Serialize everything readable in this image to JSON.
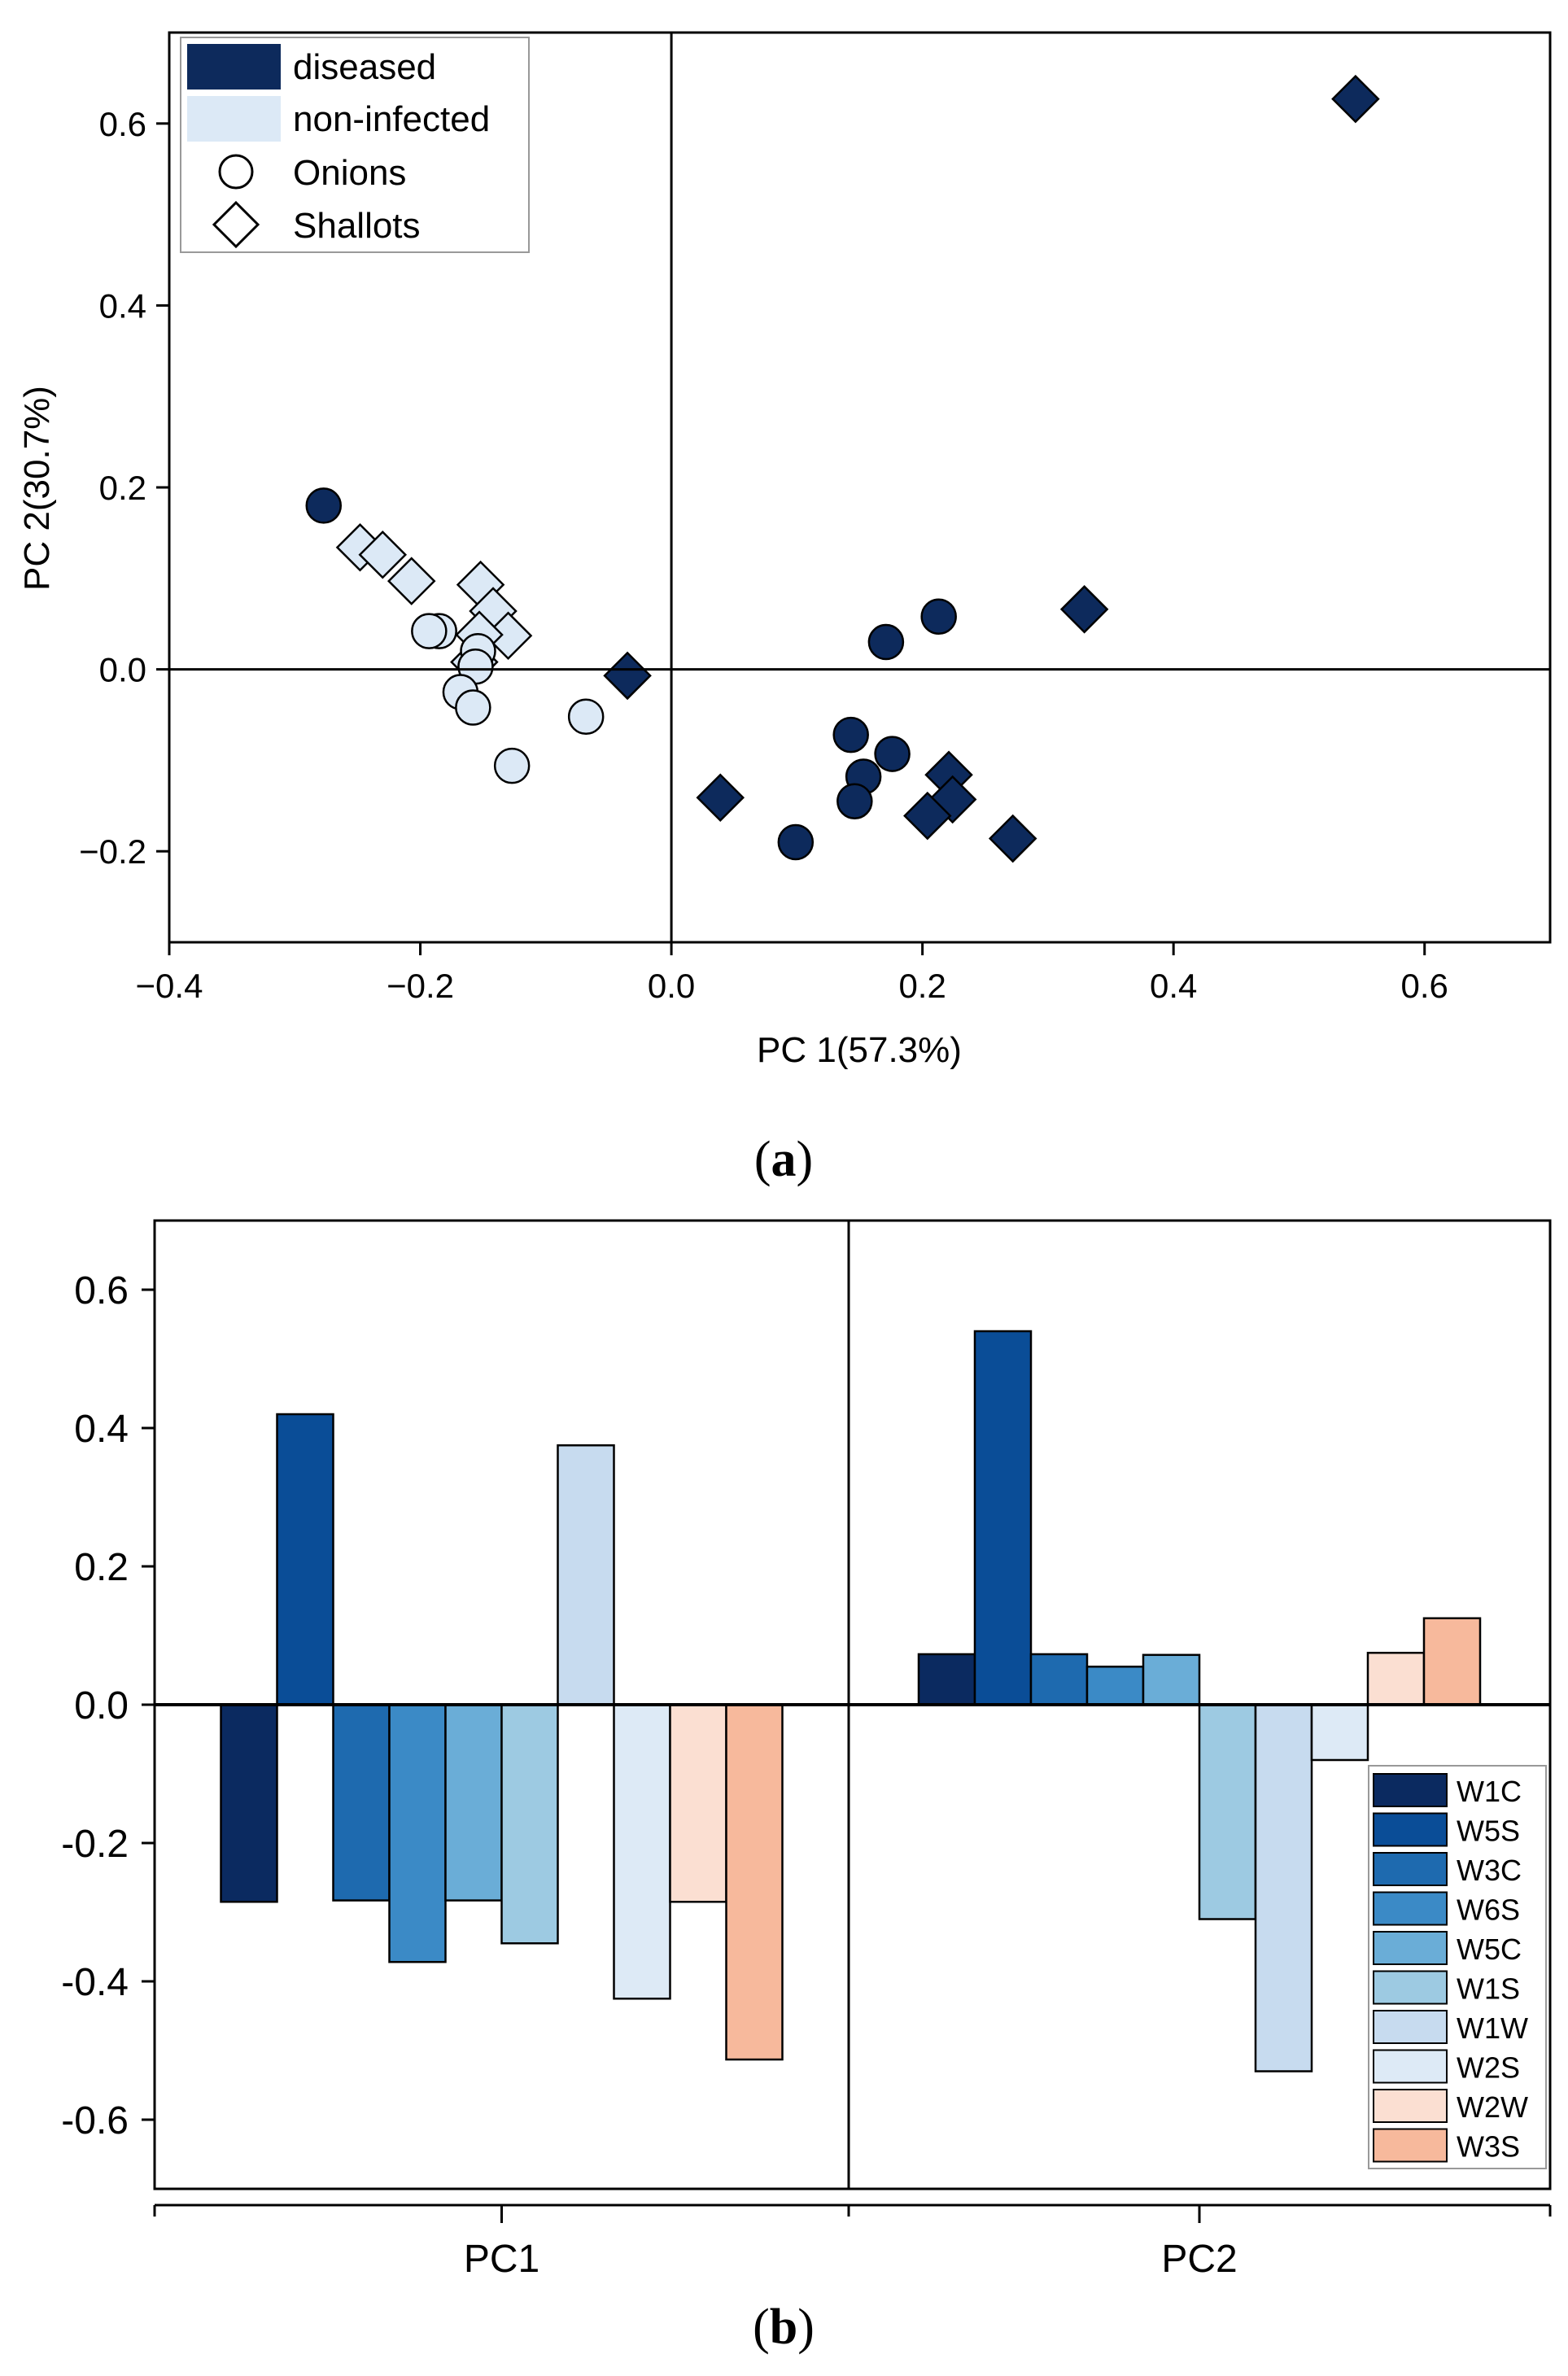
{
  "figure": {
    "panel_a_label": "(a)",
    "panel_b_label": "(b)",
    "panel_a_letter": "a",
    "panel_b_letter": "b",
    "paren_open": "(",
    "paren_close": ")"
  },
  "colors": {
    "diseased": "#0d2a5c",
    "non_infected": "#dce9f6",
    "W1C": "#0b2a60",
    "W5S": "#0a4d97",
    "W3C": "#1e6aaf",
    "W6S": "#3b8ac6",
    "W5C": "#6aadd7",
    "W1S": "#9dcae2",
    "W1W": "#c7dbef",
    "W2S": "#ddeaf6",
    "W2W": "#fbdfd2",
    "W3S": "#f7b99c"
  },
  "chart_data": [
    {
      "type": "scatter",
      "title": "",
      "xlabel": "PC 1(57.3%)",
      "ylabel": "PC 2(30.7%)",
      "xlim": [
        -0.4,
        0.7
      ],
      "ylim": [
        -0.3,
        0.7
      ],
      "xticks": [
        -0.4,
        -0.2,
        0.0,
        0.2,
        0.4,
        0.6
      ],
      "xtick_labels": [
        "−0.4",
        "−0.2",
        "0.0",
        "0.2",
        "0.4",
        "0.6"
      ],
      "yticks": [
        -0.2,
        0.0,
        0.2,
        0.4,
        0.6
      ],
      "ytick_labels": [
        "−0.2",
        "0.0",
        "0.2",
        "0.4",
        "0.6"
      ],
      "legend": {
        "position": "top-left",
        "entries": [
          "diseased",
          "non-infected",
          "Onions",
          "Shallots"
        ]
      },
      "series": [
        {
          "name": "diseased Onions",
          "marker": "circle",
          "color": "diseased",
          "points": [
            [
              -0.277,
              0.18
            ],
            [
              0.171,
              0.03
            ],
            [
              0.213,
              0.058
            ],
            [
              0.143,
              -0.072
            ],
            [
              0.176,
              -0.093
            ],
            [
              0.153,
              -0.118
            ],
            [
              0.146,
              -0.145
            ],
            [
              0.099,
              -0.19
            ]
          ]
        },
        {
          "name": "diseased Shallots",
          "marker": "diamond",
          "color": "diseased",
          "points": [
            [
              0.545,
              0.627
            ],
            [
              0.329,
              0.066
            ],
            [
              -0.035,
              -0.007
            ],
            [
              0.039,
              -0.141
            ],
            [
              0.221,
              -0.116
            ],
            [
              0.224,
              -0.143
            ],
            [
              0.204,
              -0.161
            ],
            [
              0.272,
              -0.186
            ]
          ]
        },
        {
          "name": "non-infected Onions",
          "marker": "circle",
          "color": "non_infected",
          "points": [
            [
              -0.185,
              0.042
            ],
            [
              -0.193,
              0.042
            ],
            [
              -0.154,
              0.02
            ],
            [
              -0.156,
              0.003
            ],
            [
              -0.168,
              -0.025
            ],
            [
              -0.158,
              -0.042
            ],
            [
              -0.068,
              -0.052
            ],
            [
              -0.127,
              -0.106
            ]
          ]
        },
        {
          "name": "non-infected Shallots",
          "marker": "diamond",
          "color": "non_infected",
          "points": [
            [
              -0.248,
              0.134
            ],
            [
              -0.23,
              0.126
            ],
            [
              -0.207,
              0.097
            ],
            [
              -0.152,
              0.093
            ],
            [
              -0.142,
              0.064
            ],
            [
              -0.13,
              0.037
            ],
            [
              -0.153,
              0.038
            ],
            [
              -0.157,
              0.008
            ]
          ]
        }
      ]
    },
    {
      "type": "bar",
      "title": "",
      "xlabel": "",
      "ylabel": "",
      "categories": [
        "PC1",
        "PC2"
      ],
      "ylim": [
        -0.7,
        0.7
      ],
      "yticks": [
        -0.6,
        -0.4,
        -0.2,
        0.0,
        0.2,
        0.4,
        0.6
      ],
      "ytick_labels": [
        "-0.6",
        "-0.4",
        "-0.2",
        "0.0",
        "0.2",
        "0.4",
        "0.6"
      ],
      "legend": {
        "position": "right"
      },
      "series": [
        {
          "name": "W1C",
          "values": [
            -0.285,
            0.073
          ]
        },
        {
          "name": "W5S",
          "values": [
            0.42,
            0.54
          ]
        },
        {
          "name": "W3C",
          "values": [
            -0.283,
            0.073
          ]
        },
        {
          "name": "W6S",
          "values": [
            -0.372,
            0.055
          ]
        },
        {
          "name": "W5C",
          "values": [
            -0.283,
            0.072
          ]
        },
        {
          "name": "W1S",
          "values": [
            -0.345,
            -0.31
          ]
        },
        {
          "name": "W1W",
          "values": [
            0.375,
            -0.53
          ]
        },
        {
          "name": "W2S",
          "values": [
            -0.425,
            -0.08
          ]
        },
        {
          "name": "W2W",
          "values": [
            -0.285,
            0.075
          ]
        },
        {
          "name": "W3S",
          "values": [
            -0.513,
            0.125
          ]
        }
      ]
    }
  ]
}
